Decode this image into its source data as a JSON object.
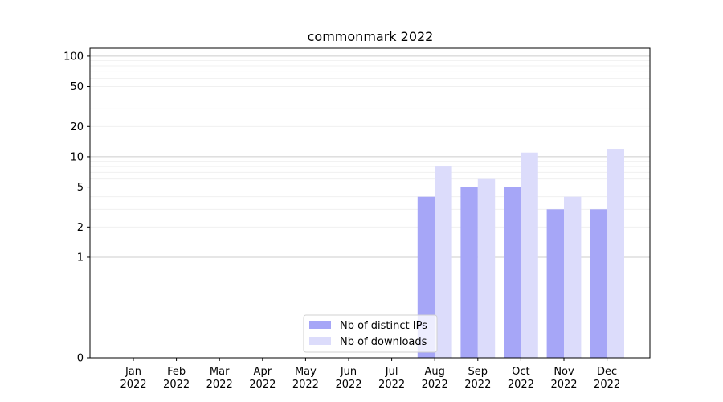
{
  "chart_data": {
    "type": "bar",
    "title": "commonmark 2022",
    "xlabel": "",
    "ylabel": "",
    "categories": [
      "Jan\n2022",
      "Feb\n2022",
      "Mar\n2022",
      "Apr\n2022",
      "May\n2022",
      "Jun\n2022",
      "Jul\n2022",
      "Aug\n2022",
      "Sep\n2022",
      "Oct\n2022",
      "Nov\n2022",
      "Dec\n2022"
    ],
    "series": [
      {
        "name": "Nb of distinct IPs",
        "color": "#a6a6f7",
        "values": [
          0,
          0,
          0,
          0,
          0,
          0,
          0,
          4,
          5,
          5,
          3,
          3
        ]
      },
      {
        "name": "Nb of downloads",
        "color": "#dcdcfb",
        "values": [
          0,
          0,
          0,
          0,
          0,
          0,
          0,
          8,
          6,
          11,
          4,
          12
        ]
      }
    ],
    "yscale": "symlog",
    "ylim": [
      0,
      120
    ],
    "yticks": [
      0,
      1,
      2,
      5,
      10,
      20,
      50,
      100
    ],
    "grid": true,
    "legend_position": "bottom-center"
  }
}
